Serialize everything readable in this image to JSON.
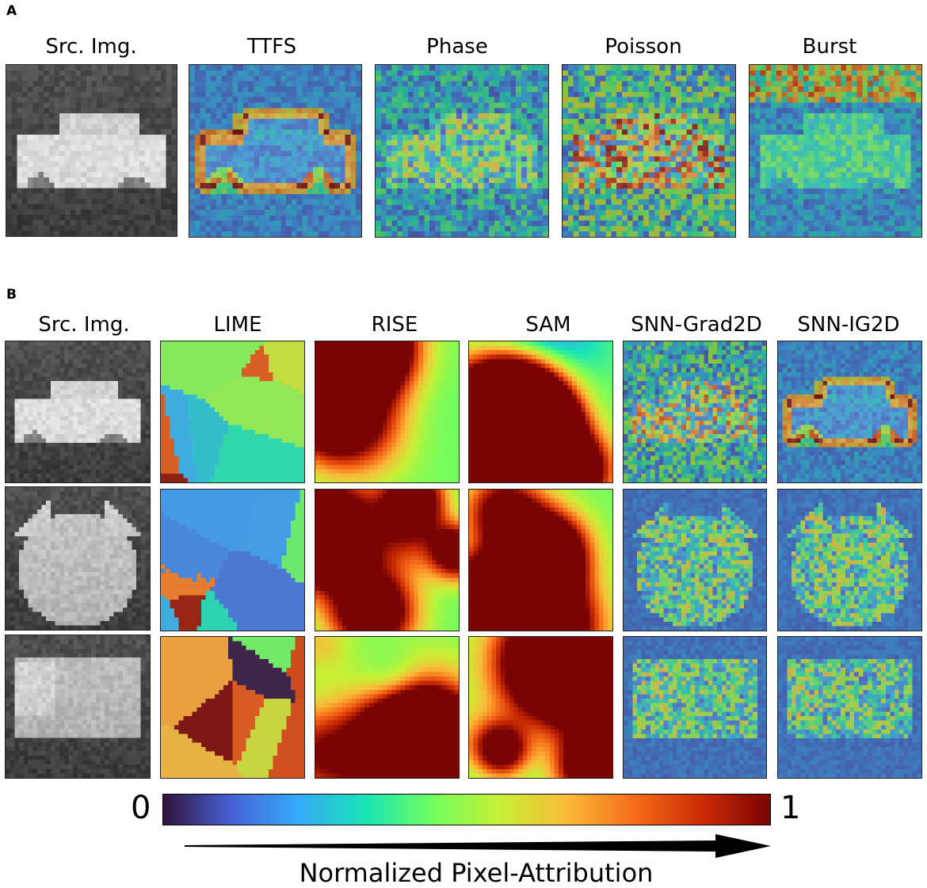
{
  "panel_a": {
    "label": "A",
    "titles": [
      "Src. Img.",
      "TTFS",
      "Phase",
      "Poisson",
      "Burst"
    ]
  },
  "panel_b": {
    "label": "B",
    "titles": [
      "Src. Img.",
      "LIME",
      "RISE",
      "SAM",
      "SNN-Grad2D",
      "SNN-IG2D"
    ],
    "rows": [
      "car",
      "cat",
      "truck"
    ]
  },
  "colorbar": {
    "min_label": "0",
    "max_label": "1",
    "label": "Normalized Pixel-Attribution",
    "colormap": "turbo",
    "colors": [
      "#30123b",
      "#4662d7",
      "#36aaf9",
      "#1ae4b6",
      "#72fe5e",
      "#c8ef34",
      "#faba39",
      "#f66b19",
      "#ca2a04",
      "#7a0403"
    ]
  }
}
